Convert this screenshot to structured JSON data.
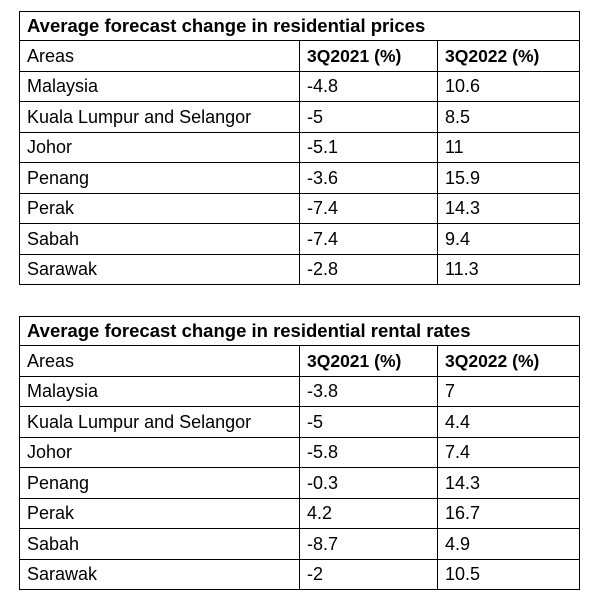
{
  "tables": [
    {
      "title": "Average forecast change in residential prices",
      "headers": [
        "Areas",
        "3Q2021 (%)",
        "3Q2022 (%)"
      ],
      "rows": [
        [
          "Malaysia",
          "-4.8",
          "10.6"
        ],
        [
          "Kuala Lumpur and Selangor",
          "-5",
          "8.5"
        ],
        [
          "Johor",
          "-5.1",
          "11"
        ],
        [
          "Penang",
          "-3.6",
          "15.9"
        ],
        [
          "Perak",
          "-7.4",
          "14.3"
        ],
        [
          "Sabah",
          "-7.4",
          "9.4"
        ],
        [
          "Sarawak",
          "-2.8",
          "11.3"
        ]
      ]
    },
    {
      "title": "Average forecast change in residential rental rates",
      "headers": [
        "Areas",
        "3Q2021 (%)",
        "3Q2022 (%)"
      ],
      "rows": [
        [
          "Malaysia",
          "-3.8",
          "7"
        ],
        [
          "Kuala Lumpur and Selangor",
          "-5",
          "4.4"
        ],
        [
          "Johor",
          "-5.8",
          "7.4"
        ],
        [
          "Penang",
          "-0.3",
          "14.3"
        ],
        [
          "Perak",
          "4.2",
          "16.7"
        ],
        [
          "Sabah",
          "-8.7",
          "4.9"
        ],
        [
          "Sarawak",
          "-2",
          "10.5"
        ]
      ]
    }
  ]
}
